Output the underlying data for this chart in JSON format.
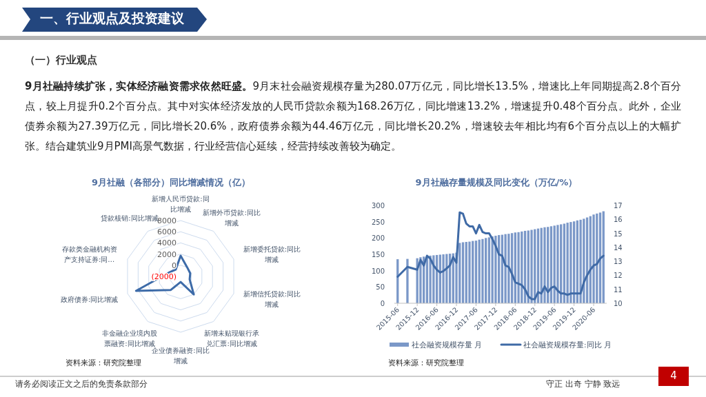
{
  "chart_data": [
    {
      "type": "other",
      "title": "一、行业观点及投资建议",
      "subtitle": "（一）行业观点",
      "annotations": [
        "9月社融持续扩张，实体经济融资需求依然旺盛。",
        "9月末社会融资规模存量为280.07万亿元，同比增长13.5%，增速比上年同期提高2.8个百分点，较上月提升0.2个百分点。其中对实体经济发放的人民币贷款余额为168.26万亿，同比增速13.2%，增速提升0.48个百分点。此外，企业债券余额为27.39万亿元，同比增长20.6%，政府债券余额为44.46万亿元，同比增长20.2%，增速较去年相比均有6个百分点以上的大幅扩张。结合建筑业9月PMI高景气数据，行业经营信心延续，经营持续改善较为确定。",
        "请务必阅读正文之后的免责条款部分",
        "守正 出奇 宁静 致远",
        "4"
      ]
    },
    {
      "type": "radar",
      "title": "9月社融（各部分）同比增减情况（亿）",
      "categories": [
        "新增人民币贷款:同比增减",
        "新增外币贷款:同比增减",
        "新增委托贷款:同比增减",
        "新增信托贷款:同比增减",
        "新增未贴现银行承兑汇票:同比增减",
        "企业债券融资:同比增减",
        "非金融企业境内股票融资:同比增减",
        "政府债券:同比增减",
        "存款类金融机构资产支持证券:同…",
        "贷款核销:同比增减"
      ],
      "series": [
        {
          "color": "#3d6ba8",
          "values": [
            1700,
            0,
            -200,
            -300,
            2000,
            -1000,
            1000,
            6400,
            200,
            -500
          ]
        }
      ],
      "ylim": [
        -2000,
        8000
      ],
      "yticks": [
        {
          "value": -2000,
          "label": "(2000)"
        },
        0,
        2000,
        4000,
        6000,
        8000
      ],
      "grid": true,
      "annotations": [
        "资料来源：研究院整理"
      ]
    },
    {
      "type": "bar",
      "title": "9月社融存量规模及同比变化（万亿/%）",
      "x": [
        "2015-06",
        "2015-09",
        "2015-12",
        "2016-01",
        "2016-02",
        "2016-03",
        "2016-04",
        "2016-05",
        "2016-06",
        "2016-07",
        "2016-08",
        "2016-09",
        "2016-10",
        "2016-11",
        "2016-12",
        "2017-01",
        "2017-02",
        "2017-03",
        "2017-04",
        "2017-05",
        "2017-06",
        "2017-07",
        "2017-08",
        "2017-09",
        "2017-10",
        "2017-11",
        "2017-12",
        "2018-01",
        "2018-02",
        "2018-03",
        "2018-04",
        "2018-05",
        "2018-06",
        "2018-07",
        "2018-08",
        "2018-09",
        "2018-10",
        "2018-11",
        "2018-12",
        "2019-01",
        "2019-02",
        "2019-03",
        "2019-04",
        "2019-05",
        "2019-06",
        "2019-07",
        "2019-08",
        "2019-09",
        "2019-10",
        "2019-11",
        "2019-12",
        "2020-01",
        "2020-02",
        "2020-03",
        "2020-04",
        "2020-05",
        "2020-06",
        "2020-07",
        "2020-08",
        "2020-09"
      ],
      "series": [
        {
          "name": "社会融资规模存量 月",
          "color": "#7b98c8",
          "values": [
            135,
            136,
            138,
            141,
            143,
            144,
            146,
            147,
            148,
            149,
            150,
            151,
            152,
            153,
            155,
            185,
            187,
            188,
            189,
            191,
            192,
            195,
            197,
            200,
            202,
            205,
            207,
            209,
            210,
            212,
            213,
            215,
            217,
            218,
            220,
            222,
            223,
            225,
            227,
            229,
            231,
            233,
            234,
            236,
            238,
            240,
            242,
            244,
            247,
            249,
            251,
            254,
            256,
            259,
            263,
            267,
            272,
            275,
            278,
            282
          ]
        },
        {
          "name": "社会融资规模存量:同比 月",
          "type": "line",
          "axis": "y2",
          "color": "#3f6aa6",
          "values": [
            11.9,
            12.6,
            12.4,
            13.1,
            12.7,
            13.4,
            13.2,
            12.7,
            12.4,
            12.2,
            12.3,
            12.5,
            12.7,
            13.3,
            12.9,
            16.5,
            16.4,
            15.7,
            15.5,
            15.5,
            15.0,
            15.6,
            15.1,
            15.0,
            15.0,
            14.6,
            14.1,
            13.5,
            13.4,
            12.7,
            12.6,
            12.1,
            11.5,
            11.4,
            11.3,
            11.0,
            10.5,
            10.3,
            10.3,
            10.8,
            10.7,
            11.2,
            10.8,
            11.1,
            11.2,
            10.9,
            10.7,
            10.7,
            10.6,
            10.7,
            10.7,
            10.7,
            10.7,
            11.5,
            12.0,
            12.4,
            12.7,
            12.8,
            13.2,
            13.4
          ]
        }
      ],
      "xlim": [
        "2015-05",
        "2020-10"
      ],
      "xticks": [
        "2015-06",
        "2015-12",
        "2016-06",
        "2016-12",
        "2017-06",
        "2017-12",
        "2018-06",
        "2018-12",
        "2019-06",
        "2019-12",
        "2020-06"
      ],
      "ylim": [
        0,
        300
      ],
      "yticks": [
        0,
        50,
        100,
        150,
        200,
        250,
        300
      ],
      "y2lim": [
        10,
        17
      ],
      "y2ticks": [
        10,
        11,
        12,
        13,
        14,
        15,
        16,
        17
      ],
      "legend": "bottom",
      "annotations": [
        "资料来源：研究院整理"
      ]
    }
  ]
}
